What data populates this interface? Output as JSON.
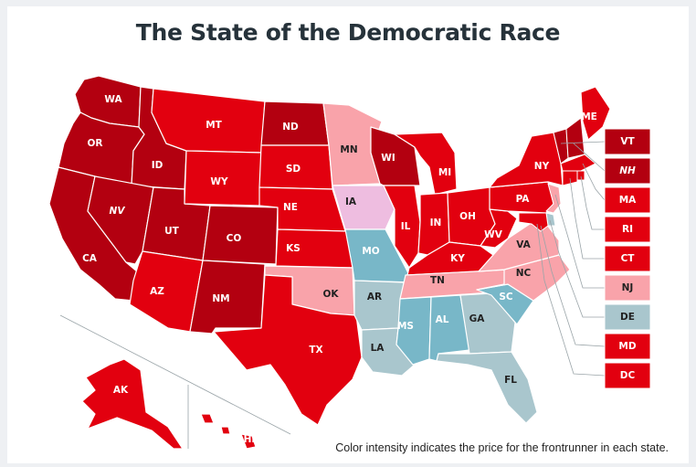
{
  "title": "The State of the Democratic Race",
  "caption": "Color intensity indicates the price for the frontrunner in each state.",
  "colors": {
    "dark": "#b30010",
    "medium": "#e2000f",
    "light": "#f9a3aa",
    "pink": "#eebde0",
    "teal_dark": "#78b7c8",
    "teal_light": "#a9c6cd",
    "border": "#ffffff"
  },
  "states": [
    {
      "code": "WA",
      "label": "WA",
      "shade": "dark"
    },
    {
      "code": "OR",
      "label": "OR",
      "shade": "dark"
    },
    {
      "code": "CA",
      "label": "CA",
      "shade": "dark"
    },
    {
      "code": "ID",
      "label": "ID",
      "shade": "dark"
    },
    {
      "code": "NV",
      "label": "NV",
      "shade": "dark"
    },
    {
      "code": "UT",
      "label": "UT",
      "shade": "dark"
    },
    {
      "code": "AZ",
      "label": "AZ",
      "shade": "medium"
    },
    {
      "code": "MT",
      "label": "MT",
      "shade": "medium"
    },
    {
      "code": "WY",
      "label": "WY",
      "shade": "medium"
    },
    {
      "code": "CO",
      "label": "CO",
      "shade": "dark"
    },
    {
      "code": "NM",
      "label": "NM",
      "shade": "dark"
    },
    {
      "code": "ND",
      "label": "ND",
      "shade": "dark"
    },
    {
      "code": "SD",
      "label": "SD",
      "shade": "medium"
    },
    {
      "code": "NE",
      "label": "NE",
      "shade": "medium"
    },
    {
      "code": "KS",
      "label": "KS",
      "shade": "medium"
    },
    {
      "code": "OK",
      "label": "OK",
      "shade": "light"
    },
    {
      "code": "TX",
      "label": "TX",
      "shade": "medium"
    },
    {
      "code": "MN",
      "label": "MN",
      "shade": "light"
    },
    {
      "code": "IA",
      "label": "IA",
      "shade": "pink"
    },
    {
      "code": "MO",
      "label": "MO",
      "shade": "teal_dark"
    },
    {
      "code": "AR",
      "label": "AR",
      "shade": "teal_light"
    },
    {
      "code": "LA",
      "label": "LA",
      "shade": "teal_light"
    },
    {
      "code": "WI",
      "label": "WI",
      "shade": "dark"
    },
    {
      "code": "IL",
      "label": "IL",
      "shade": "medium"
    },
    {
      "code": "MI",
      "label": "MI",
      "shade": "medium"
    },
    {
      "code": "IN",
      "label": "IN",
      "shade": "medium"
    },
    {
      "code": "OH",
      "label": "OH",
      "shade": "medium"
    },
    {
      "code": "KY",
      "label": "KY",
      "shade": "medium"
    },
    {
      "code": "TN",
      "label": "TN",
      "shade": "light"
    },
    {
      "code": "MS",
      "label": "MS",
      "shade": "teal_dark"
    },
    {
      "code": "AL",
      "label": "AL",
      "shade": "teal_dark"
    },
    {
      "code": "GA",
      "label": "GA",
      "shade": "teal_light"
    },
    {
      "code": "FL",
      "label": "FL",
      "shade": "teal_light"
    },
    {
      "code": "SC",
      "label": "SC",
      "shade": "teal_dark"
    },
    {
      "code": "NC",
      "label": "NC",
      "shade": "light"
    },
    {
      "code": "VA",
      "label": "VA",
      "shade": "light"
    },
    {
      "code": "WV",
      "label": "WV",
      "shade": "medium"
    },
    {
      "code": "PA",
      "label": "PA",
      "shade": "medium"
    },
    {
      "code": "NY",
      "label": "NY",
      "shade": "medium"
    },
    {
      "code": "ME",
      "label": "ME",
      "shade": "medium"
    },
    {
      "code": "AK",
      "label": "AK",
      "shade": "medium"
    },
    {
      "code": "HI",
      "label": "HI",
      "shade": "medium"
    }
  ],
  "callouts": [
    {
      "code": "VT",
      "label": "VT",
      "shade": "dark"
    },
    {
      "code": "NH",
      "label": "NH",
      "shade": "dark"
    },
    {
      "code": "MA",
      "label": "MA",
      "shade": "medium"
    },
    {
      "code": "RI",
      "label": "RI",
      "shade": "medium"
    },
    {
      "code": "CT",
      "label": "CT",
      "shade": "medium"
    },
    {
      "code": "NJ",
      "label": "NJ",
      "shade": "light"
    },
    {
      "code": "DE",
      "label": "DE",
      "shade": "teal_light"
    },
    {
      "code": "MD",
      "label": "MD",
      "shade": "medium"
    },
    {
      "code": "DC",
      "label": "DC",
      "shade": "medium"
    }
  ],
  "small_states": [
    {
      "code": "VT",
      "shade": "dark"
    },
    {
      "code": "NH",
      "shade": "dark"
    },
    {
      "code": "MA",
      "shade": "medium"
    },
    {
      "code": "RI",
      "shade": "medium"
    },
    {
      "code": "CT",
      "shade": "medium"
    },
    {
      "code": "NJ",
      "shade": "light"
    },
    {
      "code": "DE",
      "shade": "teal_light"
    },
    {
      "code": "MD",
      "shade": "medium"
    }
  ]
}
